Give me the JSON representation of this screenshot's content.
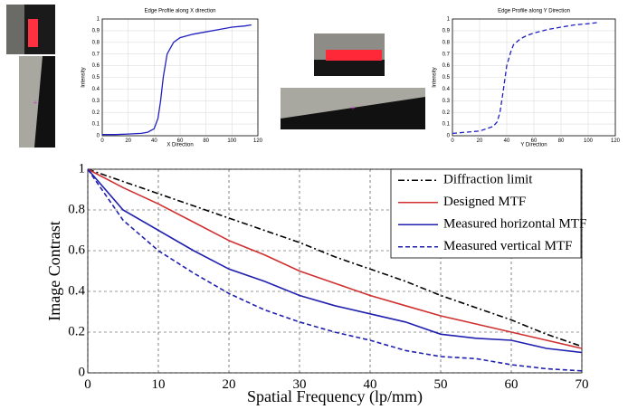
{
  "chart_data": [
    {
      "type": "line",
      "title": "Edge Profile along X direction",
      "x_label": "X Direction",
      "y_label": "Intensity",
      "x": [
        0,
        10,
        20,
        30,
        35,
        40,
        43,
        45,
        47,
        50,
        55,
        60,
        70,
        80,
        90,
        100,
        110,
        115
      ],
      "series": [
        {
          "color": "#2020c0",
          "dash": "solid",
          "values": [
            0.01,
            0.01,
            0.015,
            0.02,
            0.03,
            0.06,
            0.15,
            0.3,
            0.5,
            0.7,
            0.8,
            0.84,
            0.87,
            0.89,
            0.91,
            0.93,
            0.94,
            0.95
          ]
        }
      ],
      "xlim": [
        0,
        120
      ],
      "xticks": [
        0,
        20,
        40,
        60,
        80,
        100,
        120
      ],
      "ylim": [
        0,
        1
      ],
      "yticks": [
        0,
        0.1,
        0.2,
        0.3,
        0.4,
        0.5,
        0.6,
        0.7,
        0.8,
        0.9,
        1
      ],
      "grid": true
    },
    {
      "type": "line",
      "title": "Edge Profile along Y Direction",
      "x_label": "Y Direction",
      "y_label": "Intensity",
      "x": [
        0,
        10,
        20,
        30,
        33,
        35,
        37,
        40,
        43,
        45,
        50,
        55,
        60,
        70,
        80,
        90,
        100,
        107
      ],
      "series": [
        {
          "color": "#2020c0",
          "dash": "dashed",
          "values": [
            0.02,
            0.03,
            0.04,
            0.08,
            0.12,
            0.2,
            0.35,
            0.6,
            0.72,
            0.78,
            0.83,
            0.86,
            0.88,
            0.91,
            0.93,
            0.95,
            0.96,
            0.97
          ]
        }
      ],
      "xlim": [
        0,
        120
      ],
      "xticks": [
        0,
        20,
        40,
        60,
        80,
        100,
        120
      ],
      "ylim": [
        0,
        1
      ],
      "yticks": [
        0,
        0.1,
        0.2,
        0.3,
        0.4,
        0.5,
        0.6,
        0.7,
        0.8,
        0.9,
        1
      ],
      "grid": true
    },
    {
      "type": "line",
      "x_label": "Spatial Frequency (lp/mm)",
      "y_label": "Image Contrast",
      "x": [
        0,
        5,
        10,
        15,
        20,
        25,
        30,
        35,
        40,
        45,
        50,
        55,
        60,
        65,
        70
      ],
      "series": [
        {
          "name": "Diffraction limit",
          "color": "#000000",
          "dash": "dashdot",
          "values": [
            1,
            0.94,
            0.88,
            0.82,
            0.76,
            0.7,
            0.64,
            0.57,
            0.51,
            0.45,
            0.38,
            0.32,
            0.26,
            0.19,
            0.13
          ]
        },
        {
          "name": "Designed MTF",
          "color": "#d03030",
          "dash": "solid",
          "values": [
            1,
            0.91,
            0.83,
            0.74,
            0.65,
            0.58,
            0.5,
            0.44,
            0.38,
            0.33,
            0.28,
            0.24,
            0.2,
            0.16,
            0.12
          ]
        },
        {
          "name": "Measured horizontal MTF",
          "color": "#2020b0",
          "dash": "solid",
          "values": [
            1,
            0.8,
            0.7,
            0.6,
            0.51,
            0.45,
            0.38,
            0.33,
            0.29,
            0.25,
            0.19,
            0.17,
            0.16,
            0.12,
            0.1
          ]
        },
        {
          "name": "Measured vertical MTF",
          "color": "#2020b0",
          "dash": "dashed",
          "values": [
            1,
            0.75,
            0.6,
            0.49,
            0.39,
            0.31,
            0.25,
            0.2,
            0.16,
            0.11,
            0.08,
            0.07,
            0.04,
            0.02,
            0.01
          ]
        }
      ],
      "xlim": [
        0,
        70
      ],
      "xticks": [
        0,
        10,
        20,
        30,
        40,
        50,
        60,
        70
      ],
      "ylim": [
        0,
        1
      ],
      "yticks": [
        0,
        0.2,
        0.4,
        0.6,
        0.8,
        1
      ],
      "grid": true,
      "legend": "upper right"
    }
  ]
}
